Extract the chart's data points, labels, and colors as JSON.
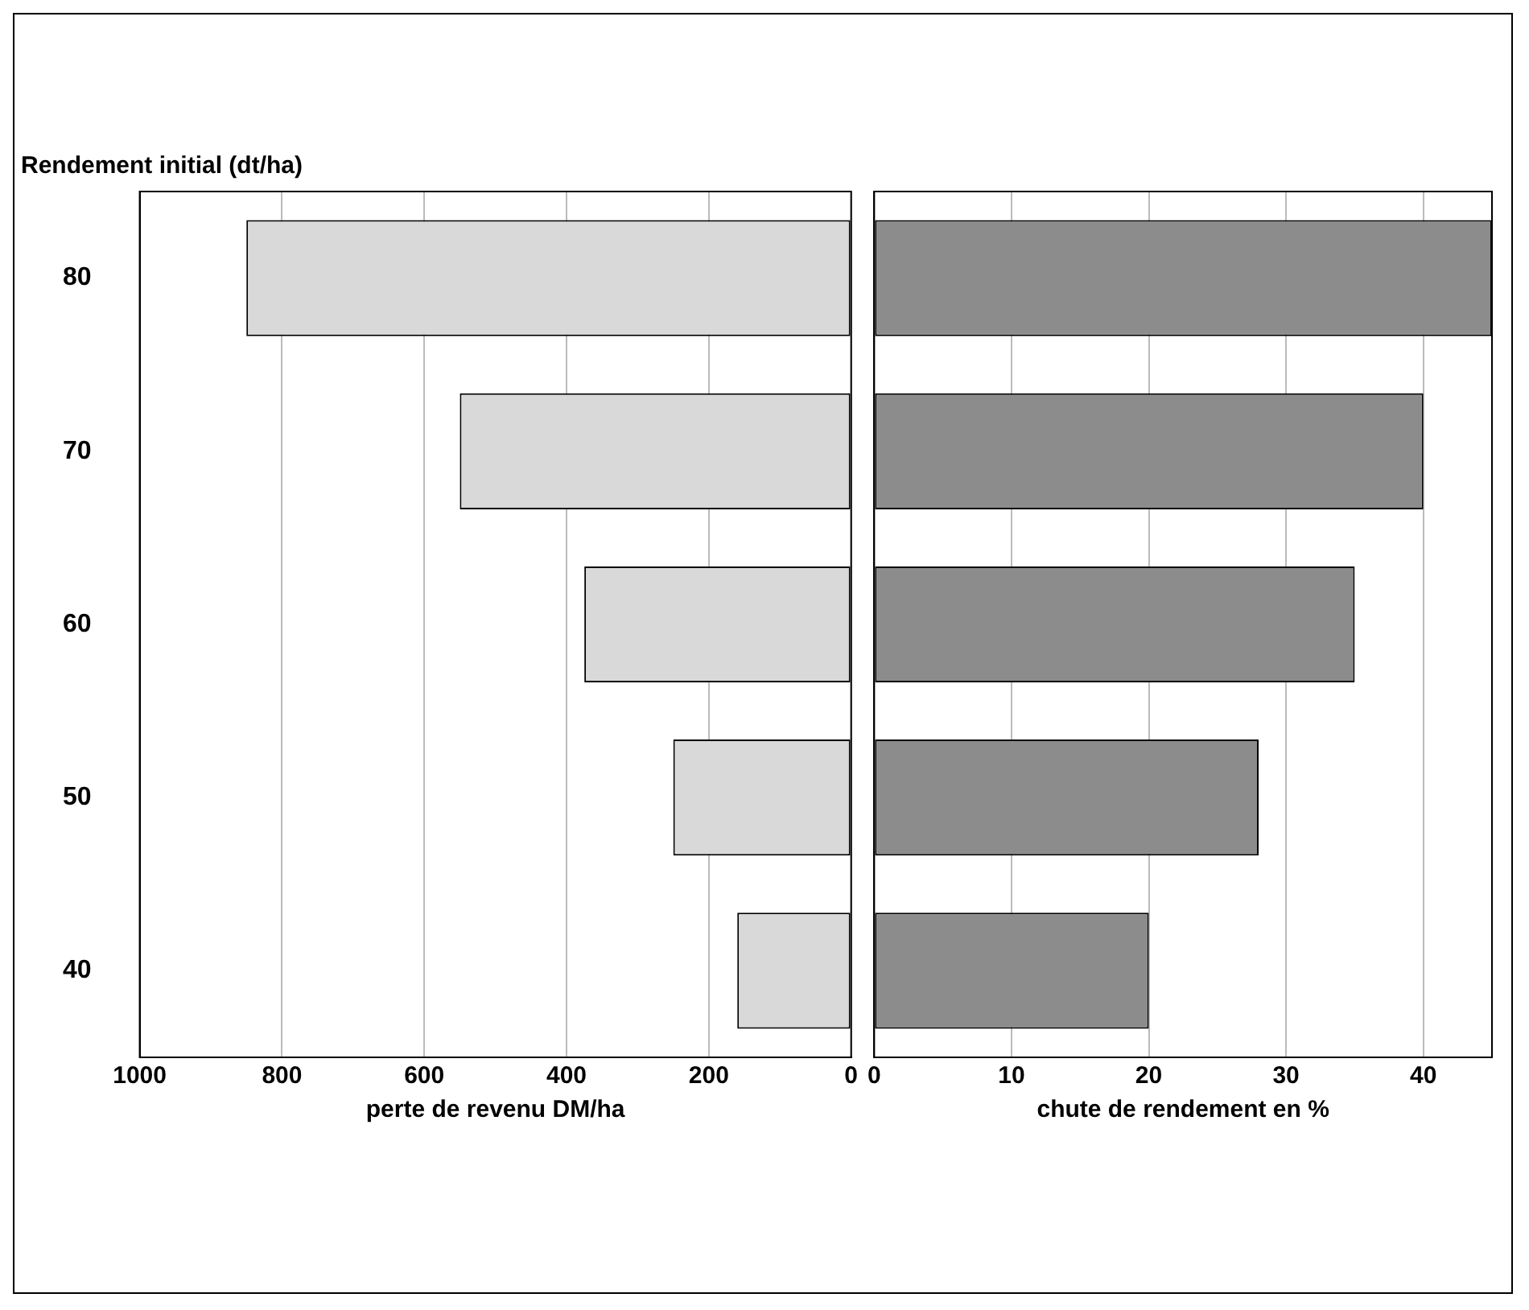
{
  "chart_data": [
    {
      "type": "bar",
      "orientation": "horizontal",
      "ylabel": "Rendement initial (dt/ha)",
      "xlabel": "perte de revenu DM/ha",
      "categories": [
        "80",
        "70",
        "60",
        "50",
        "40"
      ],
      "values": [
        850,
        550,
        375,
        250,
        160
      ],
      "color": "#d9d9d9",
      "xlim": [
        1000,
        0
      ],
      "xticks": [
        1000,
        800,
        600,
        400,
        200,
        0
      ],
      "grid": "x"
    },
    {
      "type": "bar",
      "orientation": "horizontal",
      "xlabel": "chute de rendement en %",
      "categories": [
        "80",
        "70",
        "60",
        "50",
        "40"
      ],
      "values": [
        45,
        40,
        35,
        28,
        20
      ],
      "color": "#8c8c8c",
      "xlim": [
        0,
        45
      ],
      "xticks": [
        0,
        10,
        20,
        30,
        40
      ],
      "grid": "x",
      "tick_labels": "x"
    }
  ]
}
